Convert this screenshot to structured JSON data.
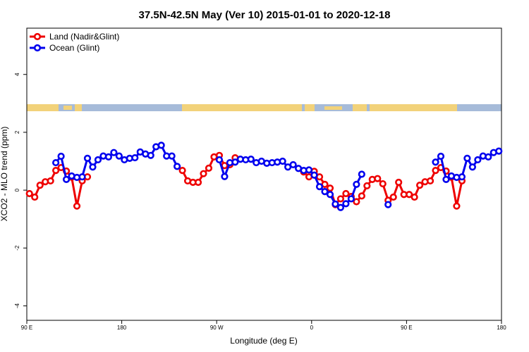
{
  "chart_data": {
    "type": "line",
    "title": "37.5N-42.5N May (Ver 10)   2015-01-01 to 2020-12-18",
    "x_label": "Longitude (deg E)",
    "y_label": "XCO2 - MLO trend (ppm)",
    "xlim": [
      90,
      540
    ],
    "xticks": [
      {
        "value": 90,
        "label": "90 E"
      },
      {
        "value": 180,
        "label": "180"
      },
      {
        "value": 270,
        "label": "90 W"
      },
      {
        "value": 360,
        "label": "0"
      },
      {
        "value": 450,
        "label": "90 E"
      },
      {
        "value": 540,
        "label": "180"
      }
    ],
    "ylim": [
      -4.5,
      5.6
    ],
    "yticks": [
      -4,
      -2,
      0,
      2,
      4
    ],
    "legend": "top-left",
    "series": [
      {
        "name": "Land (Nadir&Glint)",
        "color": "#ee0000",
        "x": [
          92.5,
          97.5,
          102.5,
          107.5,
          112.5,
          117.5,
          122.5,
          127.5,
          132.5,
          137.5,
          142.5,
          147.5,
          190,
          237.5,
          242.5,
          247.5,
          252.5,
          257.5,
          262.5,
          267.5,
          272.5,
          277.5,
          282.5,
          287.5,
          320,
          352.5,
          357.5,
          362.5,
          367.5,
          372.5,
          377.5,
          382.5,
          387.5,
          392.5,
          397.5,
          402.5,
          407.5,
          412.5,
          417.5,
          422.5,
          427.5,
          432.5,
          437.5,
          442.5,
          447.5,
          452.5,
          457.5,
          462.5,
          467.5,
          472.5,
          477.5,
          482.5,
          487.5,
          492.5,
          497.5,
          502.5
        ],
        "values": [
          -0.12,
          -0.24,
          0.17,
          0.29,
          0.32,
          0.68,
          0.78,
          0.66,
          0.45,
          -0.55,
          0.32,
          0.46,
          null,
          0.68,
          0.32,
          0.27,
          0.27,
          0.57,
          0.76,
          1.15,
          1.2,
          0.85,
          0.88,
          1.12,
          null,
          0.63,
          0.46,
          0.65,
          0.46,
          0.2,
          0.07,
          -0.5,
          -0.3,
          -0.12,
          -0.22,
          -0.4,
          -0.2,
          0.15,
          0.37,
          0.4,
          0.22,
          -0.35,
          -0.24,
          0.27,
          -0.15,
          -0.15,
          -0.24,
          0.17,
          0.29,
          0.32,
          0.68,
          0.78,
          0.66,
          0.45,
          -0.55,
          0.32
        ]
      },
      {
        "name": "Ocean (Glint)",
        "color": "#0000ee",
        "x": [
          117.5,
          122.5,
          127.5,
          132.5,
          137.5,
          142.5,
          147.5,
          152.5,
          157.5,
          162.5,
          167.5,
          172.5,
          177.5,
          182.5,
          187.5,
          192.5,
          197.5,
          202.5,
          207.5,
          212.5,
          217.5,
          222.5,
          227.5,
          232.5,
          250,
          272.5,
          277.5,
          282.5,
          287.5,
          292.5,
          297.5,
          302.5,
          307.5,
          312.5,
          317.5,
          322.5,
          327.5,
          332.5,
          337.5,
          342.5,
          347.5,
          352.5,
          357.5,
          362.5,
          367.5,
          372.5,
          377.5,
          382.5,
          387.5,
          392.5,
          397.5,
          402.5,
          407.5,
          420,
          432.5,
          455,
          477.5,
          482.5,
          487.5,
          492.5,
          497.5,
          502.5,
          507.5,
          512.5,
          517.5,
          522.5,
          527.5,
          532.5,
          537.5
        ],
        "values": [
          0.95,
          1.17,
          0.37,
          0.49,
          0.44,
          0.46,
          1.1,
          0.8,
          1.05,
          1.18,
          1.15,
          1.3,
          1.18,
          1.05,
          1.1,
          1.12,
          1.32,
          1.25,
          1.2,
          1.5,
          1.55,
          1.18,
          1.18,
          0.82,
          null,
          1.05,
          0.47,
          0.95,
          0.97,
          1.07,
          1.05,
          1.07,
          0.95,
          1.0,
          0.93,
          0.95,
          0.97,
          1.0,
          0.8,
          0.88,
          0.75,
          0.68,
          0.7,
          0.52,
          0.12,
          -0.05,
          -0.15,
          -0.48,
          -0.6,
          -0.47,
          -0.3,
          0.2,
          0.55,
          null,
          -0.5,
          null,
          0.97,
          1.17,
          0.37,
          0.49,
          0.44,
          0.46,
          1.1,
          0.8,
          1.05,
          1.18,
          1.15,
          1.3,
          1.35
        ]
      }
    ]
  }
}
